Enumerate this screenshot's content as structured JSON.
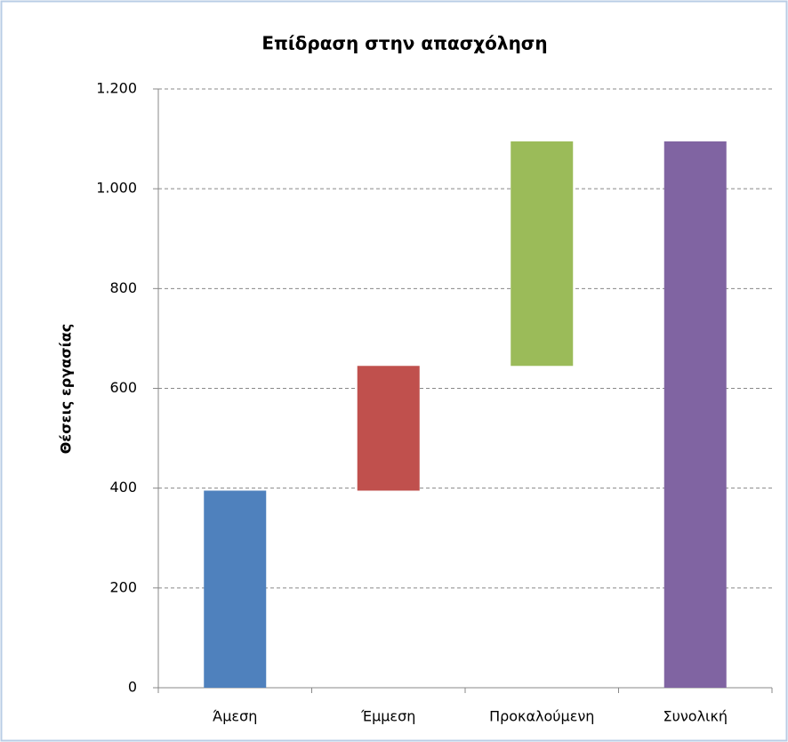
{
  "chart_data": {
    "type": "waterfall",
    "title": "Επίδραση στην απασχόληση",
    "y_label": "Θέσεις εργασίας",
    "categories": [
      "Άμεση",
      "Έμμεση",
      "Προκαλούμενη",
      "Συνολική"
    ],
    "values": [
      395,
      250,
      450,
      1095
    ],
    "is_total": [
      false,
      false,
      false,
      true
    ],
    "colors": [
      "#4f81bd",
      "#c0504d",
      "#9bbb59",
      "#8064a2"
    ],
    "ylim": [
      0,
      1200
    ],
    "yticks": [
      0,
      200,
      400,
      600,
      800,
      {
        "value": 1000,
        "label": "1.000"
      },
      {
        "value": 1200,
        "label": "1.200"
      }
    ],
    "grid": true
  }
}
